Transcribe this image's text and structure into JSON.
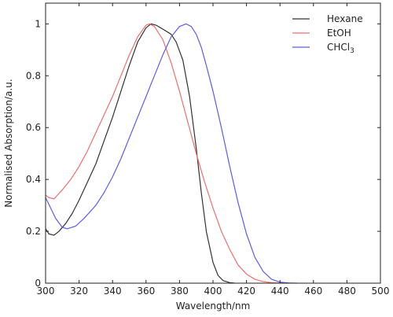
{
  "chart_data": {
    "type": "line",
    "xlabel": "Wavelength/nm",
    "ylabel": "Normalised Absorption/a.u.",
    "xlim": [
      300,
      500
    ],
    "ylim": [
      0,
      1.08
    ],
    "xticks": [
      300,
      320,
      340,
      360,
      380,
      400,
      420,
      440,
      460,
      480,
      500
    ],
    "yticks": [
      0,
      0.2,
      0.4,
      0.6,
      0.8,
      1
    ],
    "ytick_labels": [
      "0",
      "0.2",
      "0.4",
      "0.6",
      "0.8",
      "1"
    ],
    "legend_position": "top-right",
    "grid": false,
    "series": [
      {
        "name": "Hexane",
        "legend_main": "Hexane",
        "legend_sub": "",
        "color": "#333333",
        "x": [
          300,
          302,
          305,
          308,
          312,
          316,
          320,
          325,
          330,
          335,
          340,
          345,
          350,
          355,
          360,
          363,
          366,
          370,
          375,
          378,
          382,
          386,
          390,
          393,
          396,
          400,
          403,
          406,
          410,
          413
        ],
        "y": [
          0.21,
          0.19,
          0.185,
          0.2,
          0.23,
          0.27,
          0.32,
          0.39,
          0.46,
          0.55,
          0.64,
          0.74,
          0.84,
          0.93,
          0.985,
          1.0,
          0.995,
          0.98,
          0.96,
          0.93,
          0.86,
          0.72,
          0.52,
          0.35,
          0.2,
          0.08,
          0.03,
          0.01,
          0.002,
          0
        ]
      },
      {
        "name": "EtOH",
        "legend_main": "EtOH",
        "legend_sub": "",
        "color": "#f26d6d",
        "x": [
          300,
          302,
          305,
          310,
          315,
          320,
          325,
          330,
          335,
          340,
          345,
          350,
          355,
          360,
          362,
          365,
          370,
          375,
          380,
          385,
          390,
          395,
          400,
          405,
          410,
          415,
          420,
          425,
          430,
          435,
          440,
          445
        ],
        "y": [
          0.34,
          0.33,
          0.325,
          0.36,
          0.4,
          0.45,
          0.51,
          0.58,
          0.65,
          0.72,
          0.8,
          0.88,
          0.95,
          0.995,
          1.0,
          0.99,
          0.94,
          0.85,
          0.74,
          0.62,
          0.5,
          0.39,
          0.29,
          0.2,
          0.13,
          0.07,
          0.035,
          0.015,
          0.006,
          0.002,
          0.0005,
          0
        ]
      },
      {
        "name": "CHCl3",
        "legend_main": "CHCl",
        "legend_sub": "3",
        "color": "#5b5bf2",
        "x": [
          300,
          303,
          306,
          310,
          313,
          318,
          323,
          330,
          335,
          340,
          345,
          350,
          355,
          360,
          365,
          370,
          375,
          380,
          384,
          387,
          390,
          393,
          396,
          400,
          405,
          410,
          415,
          420,
          425,
          430,
          435,
          440,
          445,
          450
        ],
        "y": [
          0.33,
          0.29,
          0.25,
          0.215,
          0.21,
          0.22,
          0.25,
          0.3,
          0.35,
          0.41,
          0.48,
          0.56,
          0.64,
          0.72,
          0.8,
          0.88,
          0.95,
          0.99,
          1.0,
          0.99,
          0.96,
          0.91,
          0.84,
          0.74,
          0.6,
          0.45,
          0.31,
          0.19,
          0.1,
          0.045,
          0.015,
          0.004,
          0.001,
          0
        ]
      }
    ]
  }
}
